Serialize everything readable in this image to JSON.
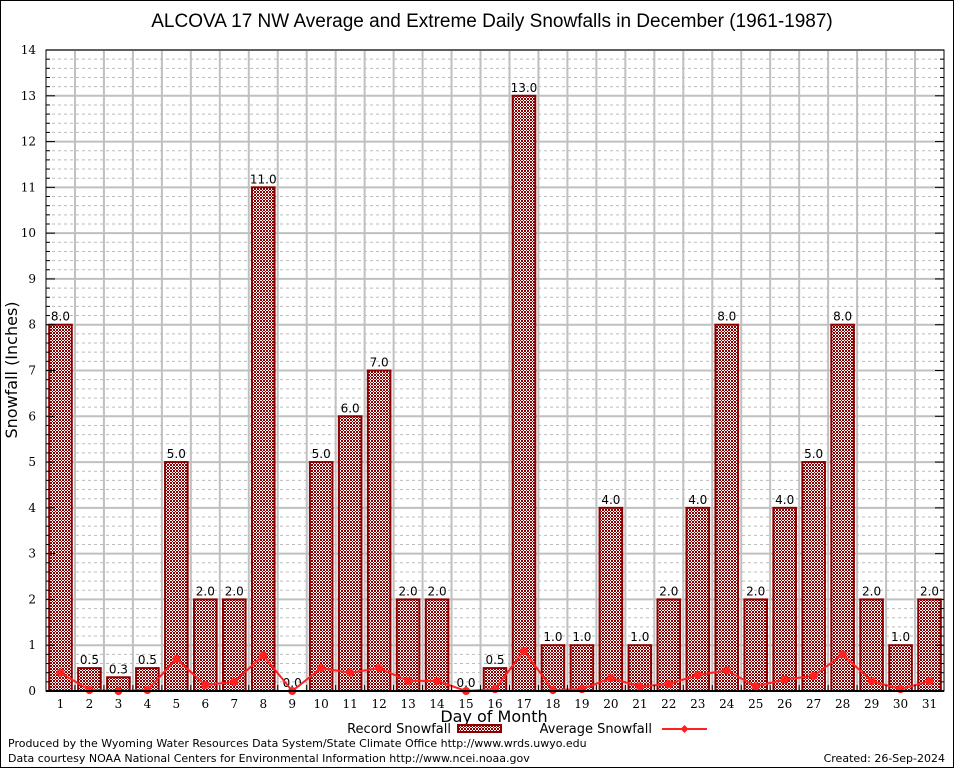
{
  "chart_data": {
    "type": "bar",
    "title": "ALCOVA 17 NW Average and Extreme Daily Snowfalls in December (1961-1987)",
    "xlabel": "Day of Month",
    "ylabel": "Snowfall (Inches)",
    "ylim": [
      0,
      14
    ],
    "yticks": [
      0,
      1,
      2,
      3,
      4,
      5,
      6,
      7,
      8,
      9,
      10,
      11,
      12,
      13,
      14
    ],
    "grid": true,
    "legend_position": "bottom-center",
    "categories": [
      "1",
      "2",
      "3",
      "4",
      "5",
      "6",
      "7",
      "8",
      "9",
      "10",
      "11",
      "12",
      "13",
      "14",
      "15",
      "16",
      "17",
      "18",
      "19",
      "20",
      "21",
      "22",
      "23",
      "24",
      "25",
      "26",
      "27",
      "28",
      "29",
      "30",
      "31"
    ],
    "series": [
      {
        "name": "Record Snowfall",
        "type": "bar",
        "color": "#8b0000",
        "values": [
          8.0,
          0.5,
          0.3,
          0.5,
          5.0,
          2.0,
          2.0,
          11.0,
          0.0,
          5.0,
          6.0,
          7.0,
          2.0,
          2.0,
          0.0,
          0.5,
          13.0,
          1.0,
          1.0,
          4.0,
          1.0,
          2.0,
          4.0,
          8.0,
          2.0,
          4.0,
          5.0,
          8.0,
          2.0,
          1.0,
          2.0
        ],
        "labels": [
          "8.0",
          "0.5",
          "0.3",
          "0.5",
          "5.0",
          "2.0",
          "2.0",
          "11.0",
          "0.0",
          "5.0",
          "6.0",
          "7.0",
          "2.0",
          "2.0",
          "0.0",
          "0.5",
          "13.0",
          "1.0",
          "1.0",
          "4.0",
          "1.0",
          "2.0",
          "4.0",
          "8.0",
          "2.0",
          "4.0",
          "5.0",
          "8.0",
          "2.0",
          "1.0",
          "2.0"
        ]
      },
      {
        "name": "Average Snowfall",
        "type": "line",
        "color": "#ff2020",
        "values": [
          0.4,
          0.02,
          0.0,
          0.02,
          0.7,
          0.13,
          0.2,
          0.78,
          0.0,
          0.5,
          0.4,
          0.5,
          0.22,
          0.22,
          0.0,
          0.04,
          0.88,
          0.02,
          0.04,
          0.28,
          0.1,
          0.15,
          0.35,
          0.45,
          0.1,
          0.25,
          0.33,
          0.8,
          0.22,
          0.04,
          0.22
        ]
      }
    ]
  },
  "footer": {
    "produced_by": "Produced by the Wyoming Water Resources Data System/State Climate Office http://www.wrds.uwyo.edu",
    "data_courtesy": "Data courtesy NOAA National Centers for Environmental Information http://www.ncei.noaa.gov",
    "created": "Created: 26-Sep-2024"
  }
}
